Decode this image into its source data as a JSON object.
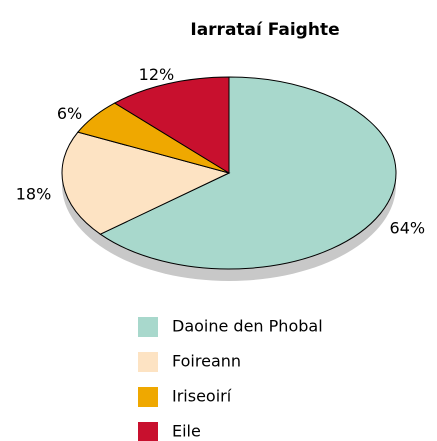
{
  "chart_data": {
    "type": "pie",
    "title": "Iarrataí Faighte",
    "categories": [
      "Daoine den Phobal",
      "Foireann",
      "Iriseoirí",
      "Eile"
    ],
    "values": [
      64,
      18,
      6,
      12
    ],
    "value_labels": [
      "64%",
      "18%",
      "6%",
      "12%"
    ],
    "colors": [
      "#a8d8cc",
      "#fde3c3",
      "#efa800",
      "#c8102e"
    ]
  }
}
